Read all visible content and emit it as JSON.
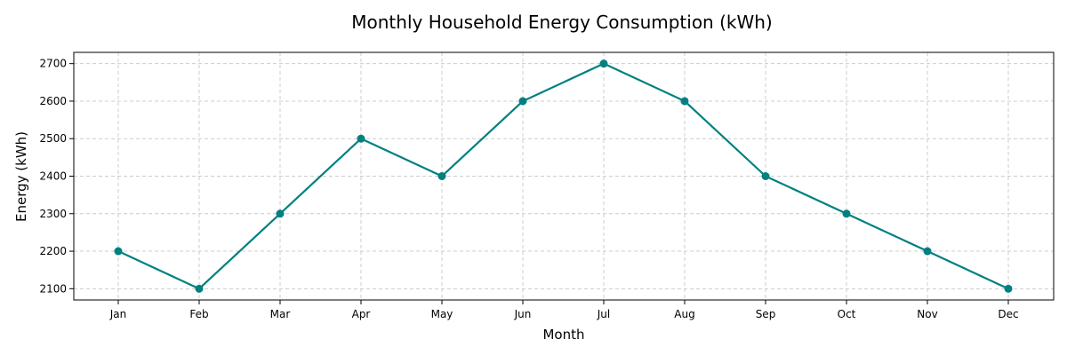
{
  "chart_data": {
    "type": "line",
    "title": "Monthly Household Energy Consumption (kWh)",
    "xlabel": "Month",
    "ylabel": "Energy (kWh)",
    "categories": [
      "Jan",
      "Feb",
      "Mar",
      "Apr",
      "May",
      "Jun",
      "Jul",
      "Aug",
      "Sep",
      "Oct",
      "Nov",
      "Dec"
    ],
    "series": [
      {
        "values": [
          2200,
          2100,
          2300,
          2500,
          2400,
          2600,
          2700,
          2600,
          2400,
          2300,
          2200,
          2100
        ],
        "color": "#008080",
        "marker": "circle"
      }
    ],
    "yticks": [
      2100,
      2200,
      2300,
      2400,
      2500,
      2600,
      2700
    ],
    "ylim": [
      2070,
      2730
    ],
    "grid": true,
    "grid_color": "#cccccc"
  }
}
